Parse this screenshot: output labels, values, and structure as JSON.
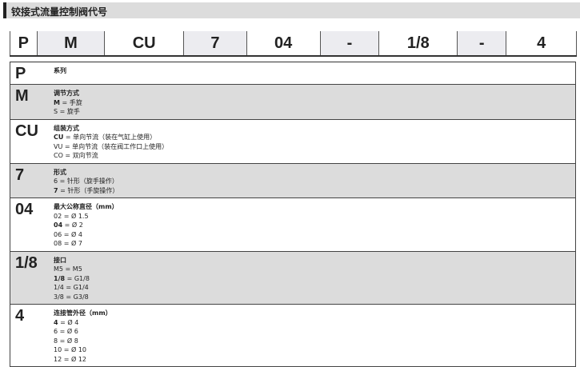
{
  "title": "铰接式流量控制阀代号",
  "code": [
    "P",
    "M",
    "CU",
    "7",
    "04",
    "-",
    "1/8",
    "-",
    "4"
  ],
  "rows": [
    {
      "key": "P",
      "title": "系列",
      "items": []
    },
    {
      "key": "M",
      "title": "调节方式",
      "items": [
        {
          "code": "M",
          "text": " = 手旋",
          "bold": true
        },
        {
          "code": "S",
          "text": " = 旋手",
          "bold": false
        }
      ]
    },
    {
      "key": "CU",
      "title": "组装方式",
      "items": [
        {
          "code": "CU",
          "text": " = 单向节流（装在气缸上使用）",
          "bold": true
        },
        {
          "code": "VU",
          "text": " = 单向节流（装在阀工作口上使用）",
          "bold": false
        },
        {
          "code": "CO",
          "text": " = 双向节流",
          "bold": false
        }
      ]
    },
    {
      "key": "7",
      "title": "形式",
      "items": [
        {
          "code": "6",
          "text": " = 针形（旋手操作）",
          "bold": false
        },
        {
          "code": "7",
          "text": " = 针形（手旋操作）",
          "bold": true
        }
      ]
    },
    {
      "key": "04",
      "title": "最大公称直径（mm）",
      "items": [
        {
          "code": "02",
          "text": " = Ø 1.5",
          "bold": false
        },
        {
          "code": "04",
          "text": " = Ø 2",
          "bold": true
        },
        {
          "code": "06",
          "text": " = Ø 4",
          "bold": false
        },
        {
          "code": "08",
          "text": " = Ø 7",
          "bold": false
        }
      ]
    },
    {
      "key": "1/8",
      "title": "接口",
      "items": [
        {
          "code": "M5",
          "text": " = M5",
          "bold": false
        },
        {
          "code": "1/8",
          "text": " = G1/8",
          "bold": true
        },
        {
          "code": "1/4",
          "text": " = G1/4",
          "bold": false
        },
        {
          "code": "3/8",
          "text": " = G3/8",
          "bold": false
        }
      ]
    },
    {
      "key": "4",
      "title": "连接管外径（mm）",
      "items": [
        {
          "code": "4",
          "text": " = Ø 4",
          "bold": true
        },
        {
          "code": "6",
          "text": " = Ø 6",
          "bold": false
        },
        {
          "code": "8",
          "text": " = Ø 8",
          "bold": false
        },
        {
          "code": "10",
          "text": " = Ø 10",
          "bold": false
        },
        {
          "code": "12",
          "text": " = Ø 12",
          "bold": false
        }
      ]
    }
  ]
}
